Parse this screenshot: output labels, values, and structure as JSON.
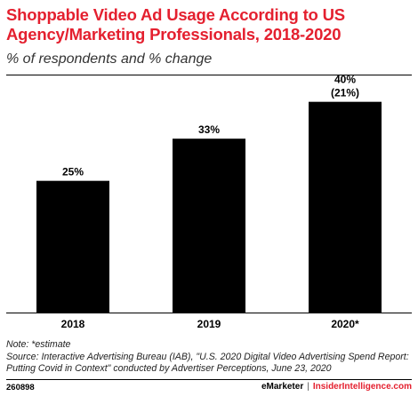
{
  "title": "Shoppable Video Ad Usage According to US Agency/Marketing Professionals, 2018-2020",
  "subtitle": "% of respondents and % change",
  "chart_data": {
    "type": "bar",
    "title": "Shoppable Video Ad Usage According to US Agency/Marketing Professionals, 2018-2020",
    "subtitle": "% of respondents and % change",
    "categories": [
      "2018",
      "2019",
      "2020*"
    ],
    "values": [
      25,
      33,
      40
    ],
    "value_labels": [
      "25%",
      "33%",
      "40%"
    ],
    "change_labels": [
      "",
      "",
      "(21%)"
    ],
    "ylim": [
      0,
      45
    ],
    "grid": false,
    "bar_color": "#000000"
  },
  "note": "Note: *estimate",
  "source": "Source: Interactive Advertising Bureau (IAB), \"U.S. 2020 Digital Video Advertising Spend Report: Putting Covid in Context\" conducted by Advertiser Perceptions, June 23, 2020",
  "chart_id": "260898",
  "brand": {
    "emarketer": "eMarketer",
    "separator": "|",
    "insider": "InsiderIntelligence.com"
  },
  "colors": {
    "accent": "#e4202f",
    "bar": "#000000"
  }
}
